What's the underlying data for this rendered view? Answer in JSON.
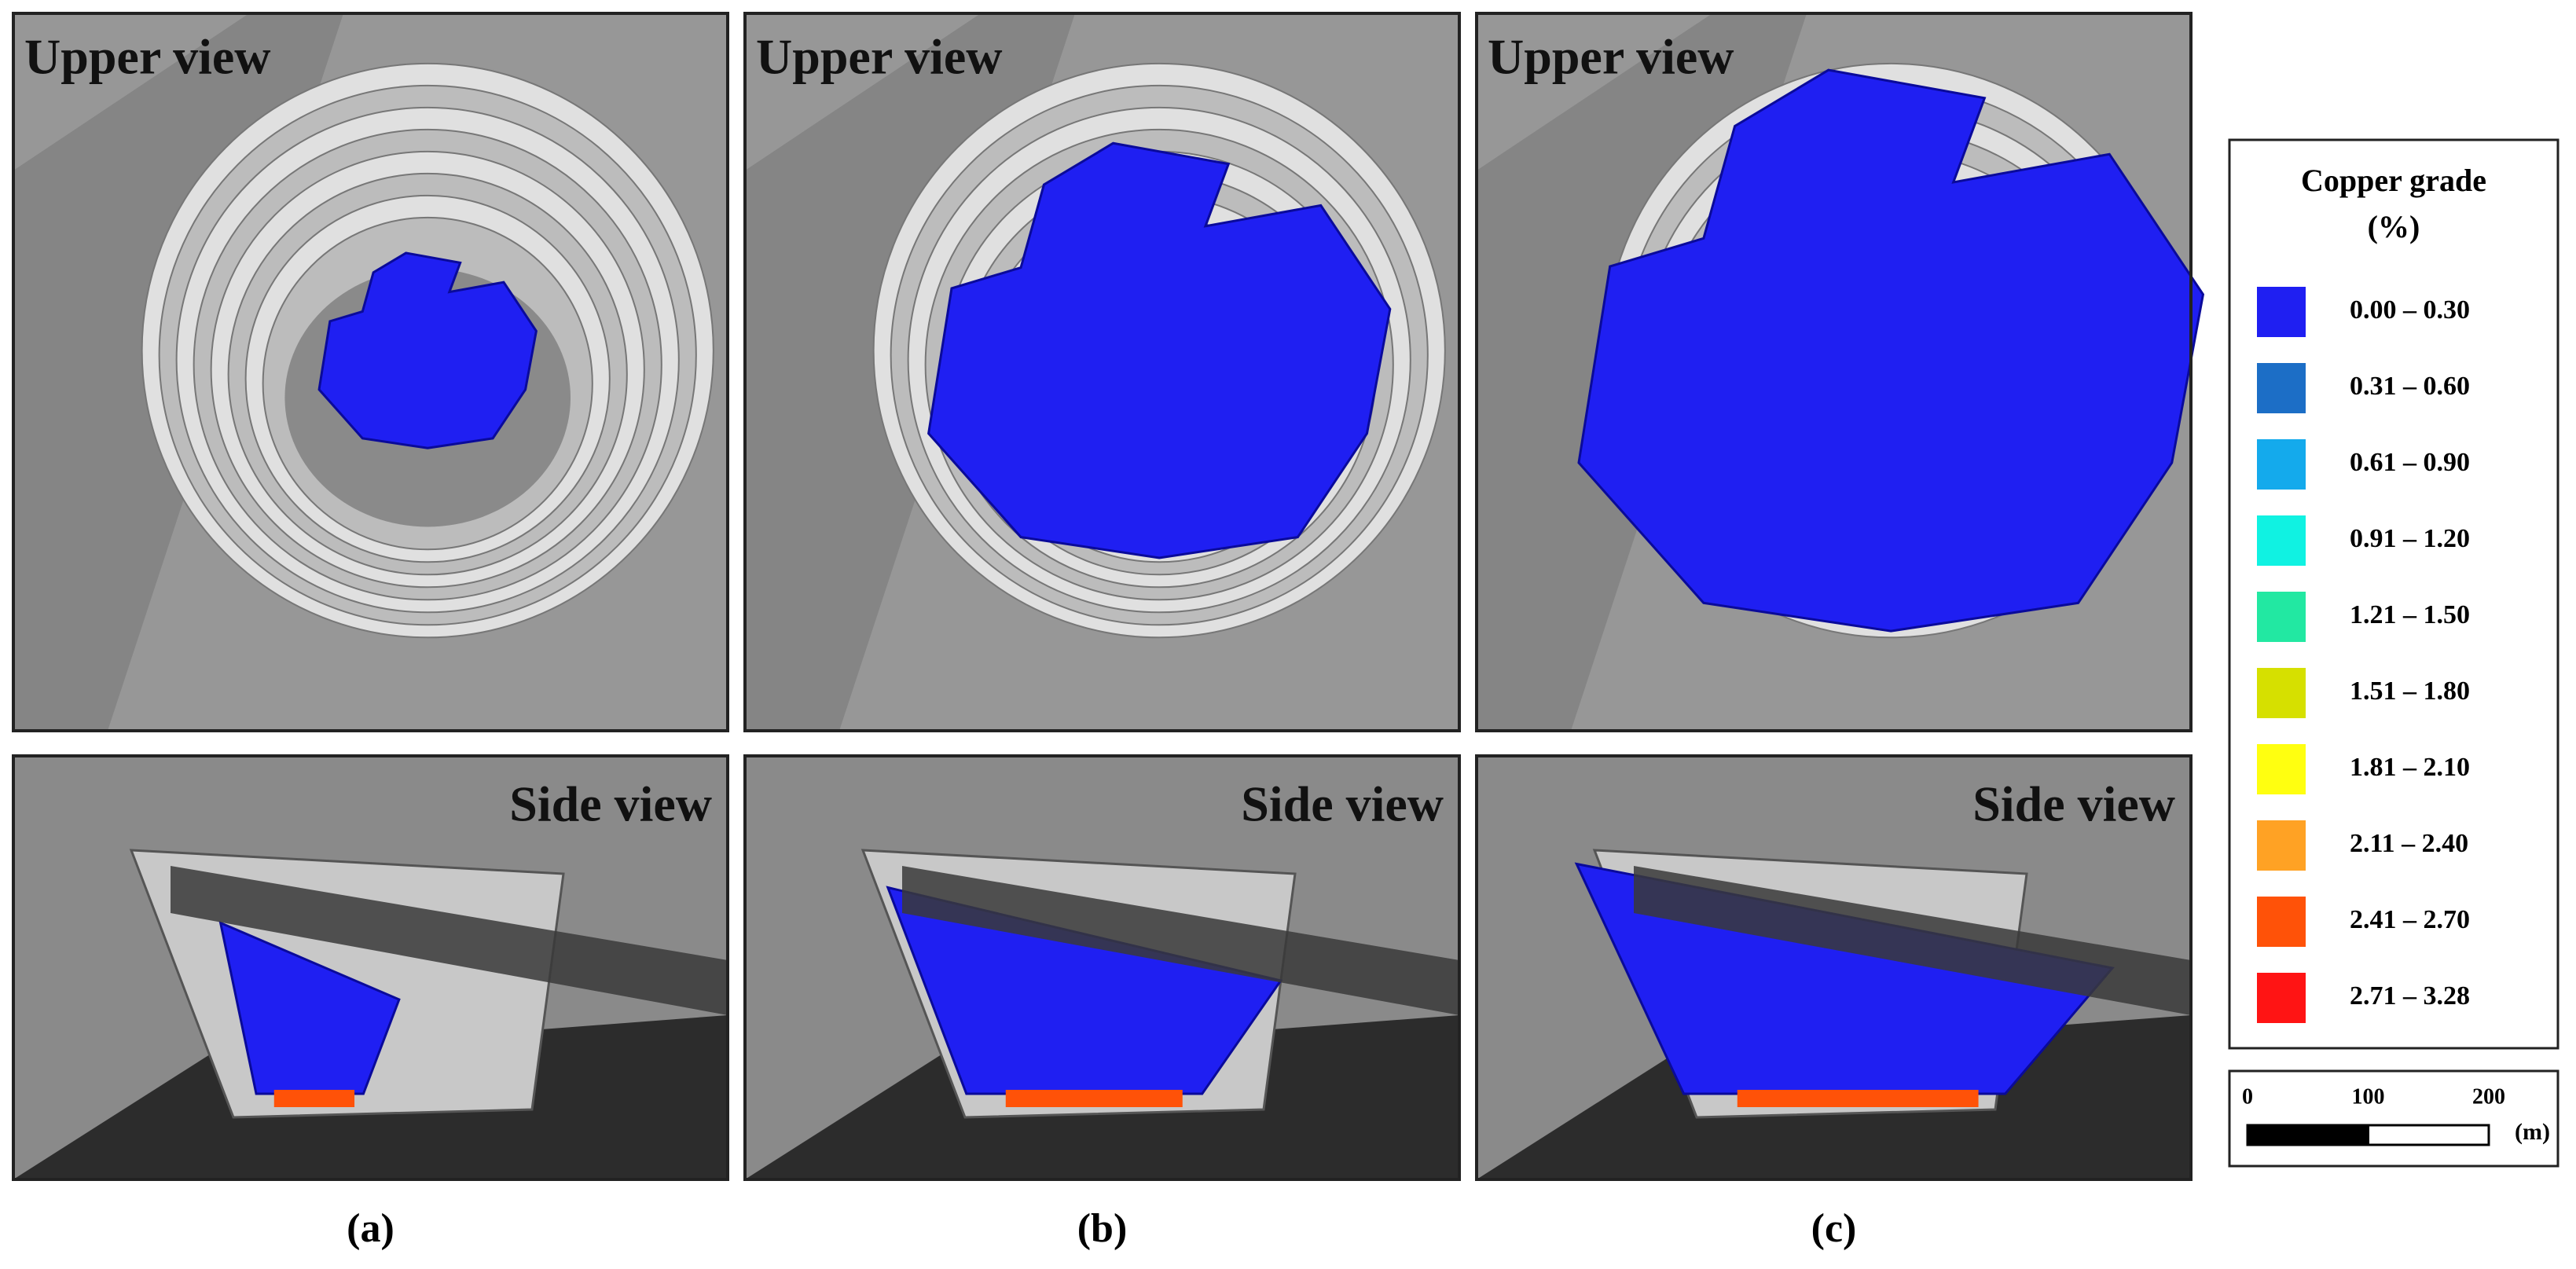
{
  "panels": [
    {
      "upper_title": "Upper view",
      "side_title": "Side view",
      "label": "(a)"
    },
    {
      "upper_title": "Upper view",
      "side_title": "Side view",
      "label": "(b)"
    },
    {
      "upper_title": "Upper view",
      "side_title": "Side view",
      "label": "(c)"
    }
  ],
  "legend": {
    "title": "Copper grade",
    "unit": "(%)",
    "items": [
      {
        "label": "0.00 – 0.30",
        "color": "#1f1ff2"
      },
      {
        "label": "0.31 – 0.60",
        "color": "#1c6ec6"
      },
      {
        "label": "0.61 – 0.90",
        "color": "#14aaec"
      },
      {
        "label": "0.91 – 1.20",
        "color": "#10f2e2"
      },
      {
        "label": "1.21 – 1.50",
        "color": "#22e8a2"
      },
      {
        "label": "1.51 – 1.80",
        "color": "#d6e000"
      },
      {
        "label": "1.81 – 2.10",
        "color": "#ffff10"
      },
      {
        "label": "2.11 – 2.40",
        "color": "#ffa224"
      },
      {
        "label": "2.41 – 2.70",
        "color": "#ff5208"
      },
      {
        "label": "2.71 – 3.28",
        "color": "#ff1414"
      }
    ]
  },
  "scale_bar": {
    "ticks": [
      0,
      100,
      200
    ],
    "unit": "(m)"
  }
}
